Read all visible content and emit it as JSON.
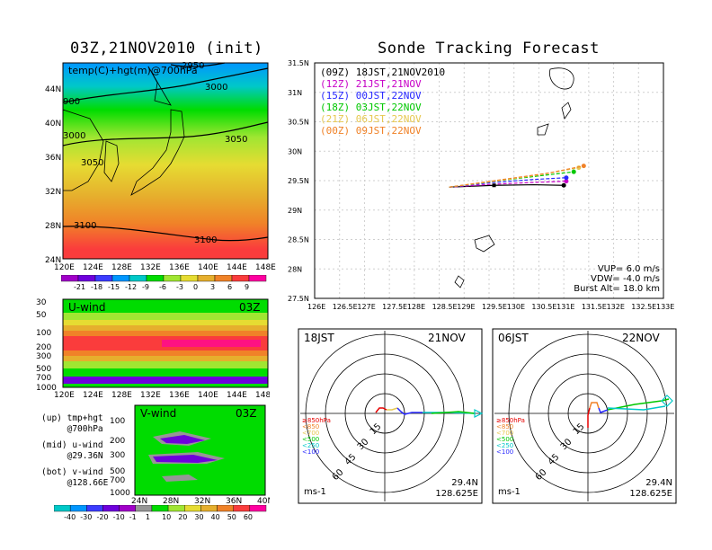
{
  "left_title": "03Z,21NOV2010 (init)",
  "right_title": "Sonde Tracking Forecast",
  "map": {
    "label": "temp(C)+hgt(m)@700hPa",
    "lon_ticks": [
      "120E",
      "124E",
      "128E",
      "132E",
      "136E",
      "140E",
      "144E",
      "148E"
    ],
    "lat_ticks": [
      "44N",
      "40N",
      "36N",
      "32N",
      "28N",
      "24N"
    ],
    "contour_labels": [
      "2950",
      "3000",
      "3050",
      "3100",
      "900",
      "3000",
      "3050",
      "3100"
    ]
  },
  "temp_colorbar": {
    "labels": [
      "-21",
      "-18",
      "-15",
      "-12",
      "-9",
      "-6",
      "-3",
      "0",
      "3",
      "6",
      "9"
    ],
    "colors": [
      "#a000c8",
      "#6e00dc",
      "#3c3cff",
      "#0096ff",
      "#00c8c8",
      "#00dc00",
      "#a0e632",
      "#e6dc32",
      "#e6af2d",
      "#f08228",
      "#fa3c3c",
      "#ff00a0"
    ]
  },
  "uwind": {
    "label": "U-wind",
    "time": "03Z",
    "p_ticks": [
      "30",
      "50",
      "100",
      "200",
      "300",
      "500",
      "700",
      "1000"
    ],
    "lon_ticks": [
      "120E",
      "124E",
      "128E",
      "132E",
      "136E",
      "140E",
      "144E",
      "148E"
    ]
  },
  "vwind": {
    "label": "V-wind",
    "time": "03Z",
    "p_ticks": [
      "100",
      "200",
      "300",
      "500",
      "700",
      "1000"
    ],
    "lat_ticks": [
      "24N",
      "28N",
      "32N",
      "36N",
      "40N"
    ]
  },
  "notes": {
    "up": "(up) tmp+hgt\n     @700hPa",
    "mid": "(mid) u-wind\n     @29.36N",
    "bot": "(bot) v-wind\n     @128.66E"
  },
  "wind_colorbar": {
    "labels": [
      "-40",
      "-30",
      "-20",
      "-10",
      "-1",
      "1",
      "10",
      "20",
      "30",
      "40",
      "50",
      "60"
    ],
    "colors": [
      "#00c8c8",
      "#0096ff",
      "#3c3cff",
      "#6e00dc",
      "#a000c8",
      "#969696",
      "#00dc00",
      "#a0e632",
      "#e6dc32",
      "#e6af2d",
      "#f08228",
      "#fa3c3c",
      "#ff00a0"
    ]
  },
  "chart_data": {
    "type": "line",
    "title": "Sonde Tracking Forecast",
    "xlim": [
      126,
      133
    ],
    "ylim": [
      27.5,
      31.5
    ],
    "x_ticks": [
      "126E",
      "126.5E",
      "127E",
      "127.5E",
      "128E",
      "128.5E",
      "129E",
      "129.5E",
      "130E",
      "130.5E",
      "131E",
      "131.5E",
      "132E",
      "132.5E",
      "133E"
    ],
    "y_ticks": [
      "31.5N",
      "31N",
      "30.5N",
      "30N",
      "29.5N",
      "29N",
      "28.5N",
      "28N",
      "27.5N"
    ],
    "grid": true,
    "legend_position": "top-left",
    "series": [
      {
        "name": "(09Z) 18JST,21NOV2010",
        "color": "#000000",
        "x": [
          128.7,
          129.6,
          130.4,
          131.0
        ],
        "y": [
          29.39,
          29.42,
          29.43,
          29.42
        ]
      },
      {
        "name": "(12Z) 21JST,21NOV",
        "color": "#c800c8",
        "x": [
          128.7,
          129.6,
          130.4,
          131.05
        ],
        "y": [
          29.39,
          29.44,
          29.47,
          29.49
        ]
      },
      {
        "name": "(15Z) 00JST,22NOV",
        "color": "#2828ff",
        "x": [
          128.7,
          129.6,
          130.4,
          131.05
        ],
        "y": [
          29.39,
          29.47,
          29.52,
          29.55
        ]
      },
      {
        "name": "(18Z) 03JST,22NOV",
        "color": "#00c800",
        "x": [
          128.7,
          129.7,
          130.5,
          131.2
        ],
        "y": [
          29.39,
          29.5,
          29.58,
          29.65
        ]
      },
      {
        "name": "(21Z) 06JST,22NOV",
        "color": "#e6c850",
        "x": [
          128.7,
          129.7,
          130.6,
          131.3
        ],
        "y": [
          29.39,
          29.5,
          29.61,
          29.72
        ]
      },
      {
        "name": "(00Z) 09JST,22NOV",
        "color": "#f08228",
        "x": [
          128.7,
          129.7,
          130.7,
          131.4
        ],
        "y": [
          29.39,
          29.51,
          29.63,
          29.75
        ]
      }
    ],
    "annotations": [
      "VUP= 6.0 m/s",
      "VDW= -4.0 m/s",
      "Burst Alt= 18.0 km"
    ]
  },
  "hodographs": [
    {
      "time_left": "18JST",
      "time_right": "21NOV",
      "loc_lat": "29.4N",
      "loc_lon": "128.625E",
      "unit": "ms-1",
      "ring_labels": [
        "15",
        "30",
        "45",
        "60"
      ],
      "level_legend": [
        {
          "label": "≥850hPa",
          "color": "#e60000"
        },
        {
          "label": "<850",
          "color": "#f08228"
        },
        {
          "label": "<700",
          "color": "#e6c850"
        },
        {
          "label": "<500",
          "color": "#00c800"
        },
        {
          "label": "<250",
          "color": "#00c8c8"
        },
        {
          "label": "<100",
          "color": "#2828ff"
        }
      ]
    },
    {
      "time_left": "06JST",
      "time_right": "22NOV",
      "loc_lat": "29.4N",
      "loc_lon": "128.625E",
      "unit": "ms-1",
      "ring_labels": [
        "15",
        "30",
        "45",
        "60"
      ],
      "level_legend": [
        {
          "label": "≥850hPa",
          "color": "#e60000"
        },
        {
          "label": "<850",
          "color": "#f08228"
        },
        {
          "label": "<700",
          "color": "#e6c850"
        },
        {
          "label": "<500",
          "color": "#00c800"
        },
        {
          "label": "<250",
          "color": "#00c8c8"
        },
        {
          "label": "<100",
          "color": "#2828ff"
        }
      ]
    }
  ]
}
